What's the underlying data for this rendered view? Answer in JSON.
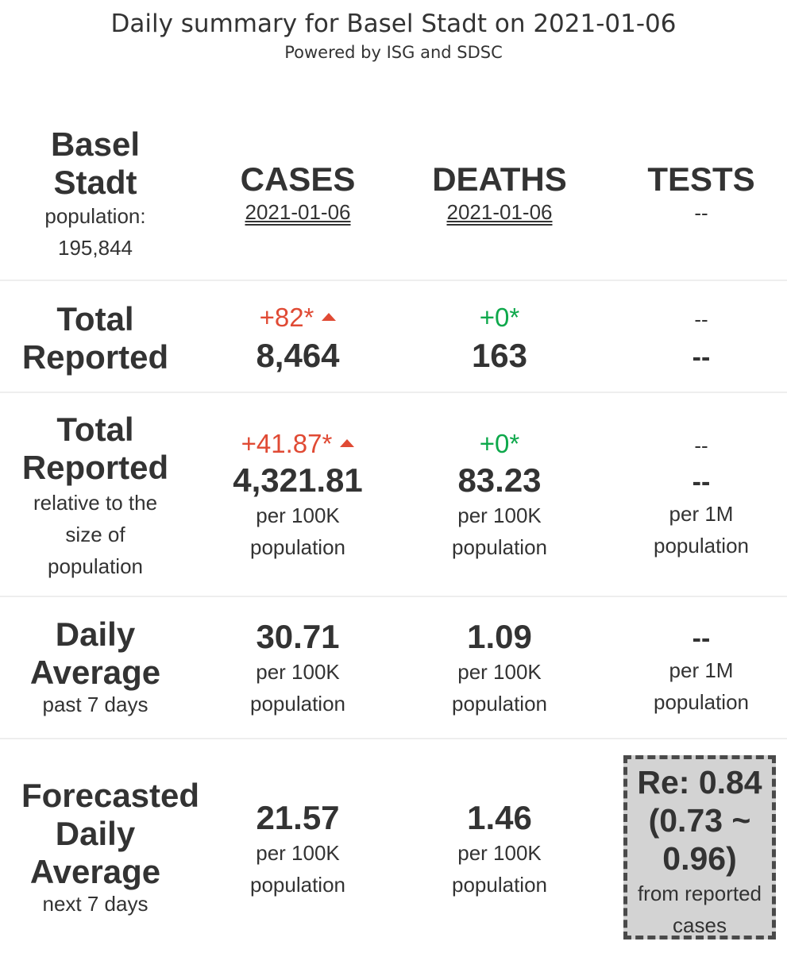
{
  "header": {
    "title": "Daily summary for Basel Stadt on 2021-01-06",
    "subtitle": "Powered by ISG and SDSC"
  },
  "region": {
    "name_line1": "Basel",
    "name_line2": "Stadt",
    "population_label": "population:",
    "population_value": "195,844"
  },
  "columns": {
    "cases": {
      "title": "CASES",
      "date": "2021-01-06"
    },
    "deaths": {
      "title": "DEATHS",
      "date": "2021-01-06"
    },
    "tests": {
      "title": "TESTS",
      "date": "--"
    }
  },
  "total_reported": {
    "label_line1": "Total",
    "label_line2": "Reported",
    "cases_delta": "+82*",
    "cases_value": "8,464",
    "deaths_delta": "+0*",
    "deaths_value": "163",
    "tests_delta": "--",
    "tests_value": "--"
  },
  "relative": {
    "label_line1": "Total",
    "label_line2": "Reported",
    "sub_line1": "relative to the",
    "sub_line2": "size of",
    "sub_line3": "population",
    "cases_delta": "+41.87*",
    "cases_value": "4,321.81",
    "cases_unit1": "per 100K",
    "cases_unit2": "population",
    "deaths_delta": "+0*",
    "deaths_value": "83.23",
    "deaths_unit1": "per 100K",
    "deaths_unit2": "population",
    "tests_delta": "--",
    "tests_value": "--",
    "tests_unit1": "per 1M",
    "tests_unit2": "population"
  },
  "daily_average": {
    "label_line1": "Daily",
    "label_line2": "Average",
    "sub": "past 7 days",
    "cases_value": "30.71",
    "cases_unit1": "per 100K",
    "cases_unit2": "population",
    "deaths_value": "1.09",
    "deaths_unit1": "per 100K",
    "deaths_unit2": "population",
    "tests_value": "--",
    "tests_unit1": "per 1M",
    "tests_unit2": "population"
  },
  "forecast": {
    "label_line1": "Forecasted",
    "label_line2": "Daily",
    "label_line3": "Average",
    "sub": "next 7 days",
    "cases_value": "21.57",
    "cases_unit1": "per 100K",
    "cases_unit2": "population",
    "deaths_value": "1.46",
    "deaths_unit1": "per 100K",
    "deaths_unit2": "population",
    "re_line1": "Re: 0.84",
    "re_line2": "(0.73 ~",
    "re_line3": "0.96)",
    "re_sub1": "from reported",
    "re_sub2": "cases"
  },
  "colors": {
    "increase": "#e04a34",
    "no_change": "#0ea84b",
    "text": "#333333",
    "re_box_bg": "#d3d3d3"
  }
}
